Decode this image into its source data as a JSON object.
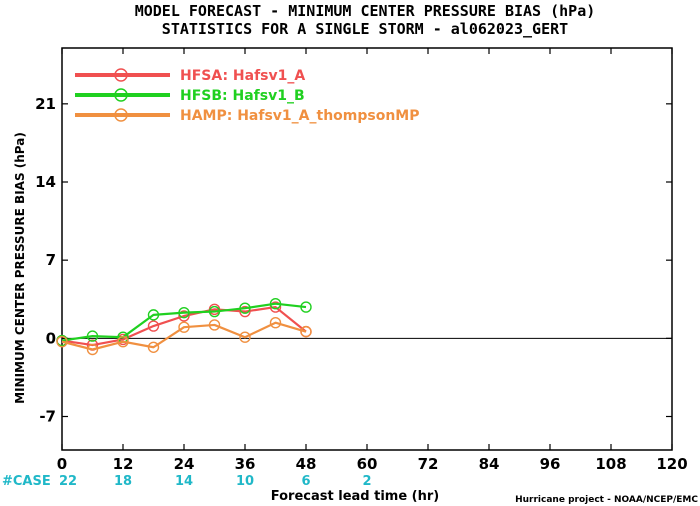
{
  "chart_data": {
    "type": "line",
    "title": "MODEL FORECAST - MINIMUM CENTER PRESSURE BIAS (hPa)",
    "subtitle": "STATISTICS FOR A SINGLE STORM - al062023_GERT",
    "xlabel": "Forecast lead time (hr)",
    "ylabel": "MINIMUM CENTER PRESSURE BIAS (hPa)",
    "xlim": [
      0,
      120
    ],
    "ylim": [
      -10,
      26
    ],
    "xticks": [
      "0",
      "12",
      "24",
      "36",
      "48",
      "60",
      "72",
      "84",
      "96",
      "108",
      "120"
    ],
    "yticks": [
      "-7",
      "0",
      "7",
      "14",
      "21"
    ],
    "grid": false,
    "legend_position": "top-left",
    "series": [
      {
        "name": "HFSA: Hafsv1_A",
        "color": "#f05050",
        "x": [
          0,
          6,
          12,
          18,
          24,
          30,
          36,
          42,
          48
        ],
        "y": [
          -0.2,
          -0.6,
          -0.1,
          1.1,
          2.0,
          2.6,
          2.4,
          2.8,
          0.6
        ]
      },
      {
        "name": "HFSB: Hafsv1_B",
        "color": "#20d020",
        "x": [
          0,
          6,
          12,
          18,
          24,
          30,
          36,
          42,
          48
        ],
        "y": [
          -0.2,
          0.2,
          0.1,
          2.1,
          2.3,
          2.4,
          2.7,
          3.1,
          2.8
        ]
      },
      {
        "name": "HAMP: Hafsv1_A_thompsonMP",
        "color": "#f09040",
        "x": [
          0,
          6,
          12,
          18,
          24,
          30,
          36,
          42,
          48
        ],
        "y": [
          -0.3,
          -1.0,
          -0.3,
          -0.8,
          1.0,
          1.2,
          0.1,
          1.4,
          0.6
        ]
      }
    ],
    "cases": {
      "label": "#CASE",
      "values": [
        {
          "x": 0,
          "n": "22"
        },
        {
          "x": 12,
          "n": "18"
        },
        {
          "x": 24,
          "n": "14"
        },
        {
          "x": 36,
          "n": "10"
        },
        {
          "x": 48,
          "n": "6"
        },
        {
          "x": 60,
          "n": "2"
        }
      ]
    },
    "credit": "Hurricane project - NOAA/NCEP/EMC"
  }
}
